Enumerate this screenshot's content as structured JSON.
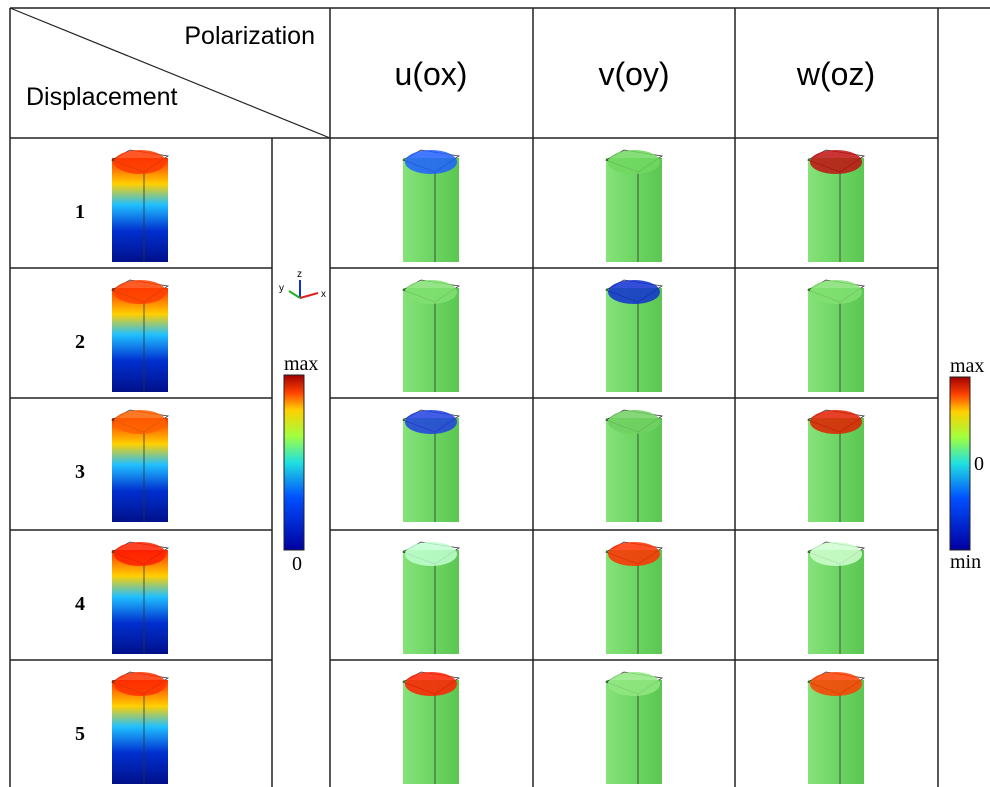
{
  "header": {
    "corner_top": "Polarization",
    "corner_bottom": "Displacement",
    "columns": [
      "u(ox)",
      "v(oy)",
      "w(oz)"
    ]
  },
  "rows": [
    "1",
    "2",
    "3",
    "4",
    "5"
  ],
  "colorbar_left": {
    "top": "max",
    "bottom": "0"
  },
  "colorbar_right": {
    "top": "max",
    "middle": "0",
    "bottom": "min"
  },
  "axes": {
    "x": "x",
    "y": "y",
    "z": "z"
  }
}
